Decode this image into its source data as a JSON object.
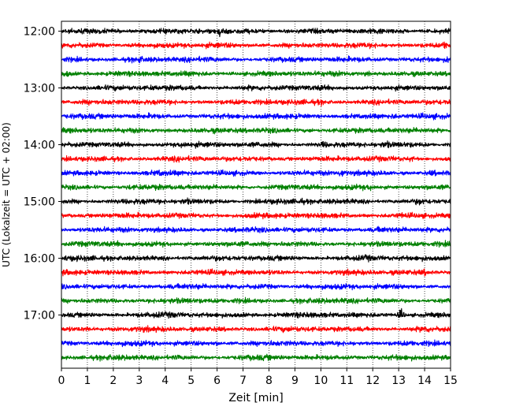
{
  "chart_data": {
    "type": "line",
    "title": "",
    "xlabel": "Zeit  [min]",
    "ylabel": "UTC (Lokalzeit = UTC + 02:00)",
    "xlim": [
      0,
      15
    ],
    "x_ticks": [
      "0",
      "1",
      "2",
      "3",
      "4",
      "5",
      "6",
      "7",
      "8",
      "9",
      "10",
      "11",
      "12",
      "13",
      "14",
      "15"
    ],
    "y_ticks": [
      "12:00",
      "13:00",
      "14:00",
      "15:00",
      "16:00",
      "17:00"
    ],
    "grid": "vertical dotted at each minute",
    "trace_interval_minutes": 15,
    "start_time": "12:00",
    "trace_color_cycle": [
      "#000000",
      "#ff0000",
      "#0000ff",
      "#008000"
    ],
    "traces": [
      {
        "start": "12:00",
        "color": "#000000",
        "events": [
          [
            6.1,
            2.0
          ]
        ]
      },
      {
        "start": "12:15",
        "color": "#ff0000",
        "events": [
          [
            14.8,
            2.0
          ],
          [
            7.5,
            1.3
          ]
        ]
      },
      {
        "start": "12:30",
        "color": "#0000ff",
        "events": [
          [
            3.0,
            1.5
          ],
          [
            14.9,
            1.6
          ]
        ]
      },
      {
        "start": "12:45",
        "color": "#008000",
        "events": [
          [
            0.2,
            1.6
          ],
          [
            11.8,
            1.4
          ]
        ]
      },
      {
        "start": "13:00",
        "color": "#000000",
        "events": [
          [
            3.5,
            1.2
          ]
        ]
      },
      {
        "start": "13:15",
        "color": "#ff0000",
        "events": [
          [
            10.0,
            1.3
          ]
        ]
      },
      {
        "start": "13:30",
        "color": "#0000ff",
        "events": [
          [
            3.5,
            1.3
          ],
          [
            12.8,
            1.4
          ]
        ]
      },
      {
        "start": "13:45",
        "color": "#008000",
        "events": [
          [
            9.6,
            1.3
          ]
        ]
      },
      {
        "start": "14:00",
        "color": "#000000",
        "events": [
          [
            4.7,
            1.5
          ],
          [
            10.1,
            1.6
          ],
          [
            12.5,
            1.7
          ]
        ]
      },
      {
        "start": "14:15",
        "color": "#ff0000",
        "events": [
          [
            13.5,
            1.4
          ]
        ]
      },
      {
        "start": "14:30",
        "color": "#0000ff",
        "events": [
          [
            3.8,
            1.4
          ],
          [
            10.8,
            1.8
          ],
          [
            14.3,
            1.5
          ]
        ]
      },
      {
        "start": "14:45",
        "color": "#008000",
        "events": [
          [
            2.6,
            1.3
          ],
          [
            11.9,
            1.4
          ]
        ]
      },
      {
        "start": "15:00",
        "color": "#000000",
        "events": [
          [
            4.8,
            1.6
          ],
          [
            9.2,
            1.5
          ],
          [
            13.8,
            1.6
          ]
        ]
      },
      {
        "start": "15:15",
        "color": "#ff0000",
        "events": [
          [
            13.1,
            1.3
          ]
        ]
      },
      {
        "start": "15:30",
        "color": "#0000ff",
        "events": [
          [
            12.3,
            1.5
          ]
        ]
      },
      {
        "start": "15:45",
        "color": "#008000",
        "events": [
          [
            2.2,
            1.3
          ]
        ]
      },
      {
        "start": "16:00",
        "color": "#000000",
        "events": [
          [
            11.8,
            1.3
          ]
        ]
      },
      {
        "start": "16:15",
        "color": "#ff0000",
        "events": [
          [
            14.0,
            1.5
          ]
        ]
      },
      {
        "start": "16:30",
        "color": "#0000ff",
        "events": [
          [
            9.6,
            1.3
          ]
        ]
      },
      {
        "start": "16:45",
        "color": "#008000",
        "events": [
          [
            11.0,
            1.3
          ]
        ]
      },
      {
        "start": "17:00",
        "color": "#000000",
        "events": [
          [
            13.1,
            2.6
          ],
          [
            4.3,
            1.3
          ]
        ]
      },
      {
        "start": "17:15",
        "color": "#ff0000",
        "events": [
          [
            1.0,
            1.4
          ],
          [
            14.0,
            1.5
          ]
        ]
      },
      {
        "start": "17:30",
        "color": "#0000ff",
        "events": [
          [
            6.0,
            1.2
          ]
        ]
      },
      {
        "start": "17:45",
        "color": "#008000",
        "events": [
          [
            4.5,
            1.2
          ]
        ]
      }
    ]
  }
}
